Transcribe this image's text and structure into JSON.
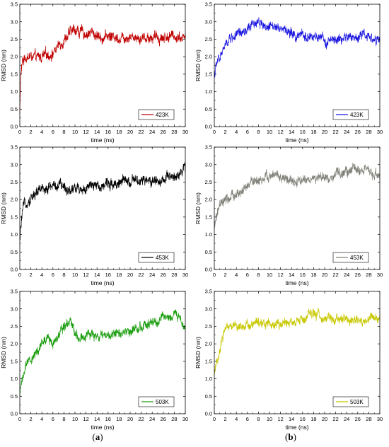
{
  "captions": [
    "a",
    "b"
  ],
  "chart_data": [
    {
      "type": "line",
      "xlabel": "time (ns)",
      "ylabel": "RMSD (nm)",
      "xlim": [
        0,
        30
      ],
      "ylim": [
        0,
        3.5
      ],
      "xticks": [
        "0",
        "2",
        "4",
        "6",
        "8",
        "10",
        "12",
        "14",
        "16",
        "18",
        "20",
        "22",
        "24",
        "26",
        "28",
        "30"
      ],
      "yticks": [
        "0.0",
        "0.5",
        "1.0",
        "1.5",
        "2.0",
        "2.5",
        "3.0",
        "3.5"
      ],
      "legend_placement": "bottom-right",
      "series": [
        {
          "name": "423K",
          "color": "#c00000",
          "noise": 0.13,
          "x": [
            0,
            0.2,
            0.5,
            1,
            2,
            3,
            4,
            5,
            6,
            7,
            8,
            9,
            10,
            11,
            12,
            13,
            14,
            15,
            16,
            18,
            20,
            22,
            24,
            26,
            28,
            30
          ],
          "y": [
            0.4,
            1.5,
            1.85,
            2.0,
            2.0,
            1.95,
            2.0,
            2.05,
            2.1,
            2.3,
            2.5,
            2.65,
            2.8,
            2.7,
            2.65,
            2.7,
            2.6,
            2.55,
            2.6,
            2.55,
            2.6,
            2.55,
            2.55,
            2.55,
            2.6,
            2.55
          ]
        }
      ]
    },
    {
      "type": "line",
      "xlabel": "time (ns)",
      "ylabel": "RMSD (nm)",
      "xlim": [
        0,
        30
      ],
      "ylim": [
        0,
        3.5
      ],
      "xticks": [
        "0",
        "2",
        "4",
        "6",
        "8",
        "10",
        "12",
        "14",
        "16",
        "18",
        "20",
        "22",
        "24",
        "26",
        "28",
        "30"
      ],
      "yticks": [
        "0.0",
        "0.5",
        "1.0",
        "1.5",
        "2.0",
        "2.5",
        "3.0",
        "3.5"
      ],
      "legend_placement": "bottom-right",
      "series": [
        {
          "name": "423K",
          "color": "#1a16e0",
          "noise": 0.12,
          "x": [
            0,
            0.5,
            1,
            2,
            3,
            4,
            5,
            6,
            7,
            8,
            9,
            10,
            11,
            12,
            13,
            14,
            15,
            16,
            18,
            20,
            22,
            24,
            26,
            27,
            28,
            29,
            30
          ],
          "y": [
            1.5,
            1.8,
            2.0,
            2.3,
            2.55,
            2.6,
            2.65,
            2.75,
            2.9,
            3.05,
            2.9,
            2.8,
            2.95,
            2.85,
            2.75,
            2.65,
            2.55,
            2.6,
            2.55,
            2.45,
            2.45,
            2.55,
            2.55,
            2.7,
            2.6,
            2.5,
            2.4
          ]
        }
      ]
    },
    {
      "type": "line",
      "xlabel": "time (ns)",
      "ylabel": "RMSD (nm)",
      "xlim": [
        0,
        30
      ],
      "ylim": [
        0,
        3.5
      ],
      "xticks": [
        "0",
        "2",
        "4",
        "6",
        "8",
        "10",
        "12",
        "14",
        "16",
        "18",
        "20",
        "22",
        "24",
        "26",
        "28",
        "30"
      ],
      "yticks": [
        "0.0",
        "0.5",
        "1.0",
        "1.5",
        "2.0",
        "2.5",
        "3.0",
        "3.5"
      ],
      "legend_placement": "bottom-right",
      "series": [
        {
          "name": "453K",
          "color": "#000000",
          "noise": 0.13,
          "x": [
            0,
            0.3,
            0.6,
            1,
            2,
            3,
            4,
            5,
            6,
            7,
            8,
            9,
            10,
            12,
            14,
            16,
            18,
            20,
            22,
            24,
            26,
            28,
            29,
            30
          ],
          "y": [
            0.75,
            1.4,
            1.7,
            1.9,
            2.05,
            2.2,
            2.3,
            2.35,
            2.4,
            2.4,
            2.35,
            2.3,
            2.35,
            2.3,
            2.4,
            2.45,
            2.5,
            2.5,
            2.5,
            2.55,
            2.55,
            2.65,
            2.8,
            2.9
          ]
        }
      ]
    },
    {
      "type": "line",
      "xlabel": "time (ns)",
      "ylabel": "RMSD (nm)",
      "xlim": [
        0,
        30
      ],
      "ylim": [
        0,
        3.5
      ],
      "xticks": [
        "0",
        "2",
        "4",
        "6",
        "8",
        "10",
        "12",
        "14",
        "16",
        "18",
        "20",
        "22",
        "24",
        "26",
        "28",
        "30"
      ],
      "yticks": [
        "0.0",
        "0.5",
        "1.0",
        "1.5",
        "2.0",
        "2.5",
        "3.0",
        "3.5"
      ],
      "legend_placement": "bottom-right",
      "series": [
        {
          "name": "453K",
          "color": "#808078",
          "noise": 0.12,
          "x": [
            0,
            0.3,
            1,
            2,
            3,
            4,
            5,
            6,
            7,
            8,
            9,
            10,
            11,
            12,
            13,
            14,
            15,
            16,
            18,
            20,
            22,
            24,
            25,
            26,
            27,
            28,
            29,
            30
          ],
          "y": [
            1.1,
            1.5,
            1.8,
            1.95,
            2.05,
            2.15,
            2.2,
            2.35,
            2.55,
            2.55,
            2.6,
            2.65,
            2.7,
            2.6,
            2.6,
            2.5,
            2.45,
            2.55,
            2.6,
            2.6,
            2.7,
            2.8,
            2.85,
            2.9,
            2.85,
            2.75,
            2.7,
            2.75
          ]
        }
      ]
    },
    {
      "type": "line",
      "xlabel": "time (ns)",
      "ylabel": "RMSD (nm)",
      "xlim": [
        0,
        30
      ],
      "ylim": [
        0,
        3.5
      ],
      "xticks": [
        "0",
        "2",
        "4",
        "6",
        "8",
        "10",
        "12",
        "14",
        "16",
        "18",
        "20",
        "22",
        "24",
        "26",
        "28",
        "30"
      ],
      "yticks": [
        "0.0",
        "0.5",
        "1.0",
        "1.5",
        "2.0",
        "2.5",
        "3.0",
        "3.5"
      ],
      "legend_placement": "bottom-right",
      "series": [
        {
          "name": "503K",
          "color": "#1c9e10",
          "noise": 0.12,
          "x": [
            0,
            0.3,
            1,
            2,
            3,
            4,
            5,
            6,
            7,
            8,
            9,
            10,
            11,
            12,
            14,
            16,
            18,
            20,
            22,
            24,
            25,
            26,
            27,
            28,
            29,
            30
          ],
          "y": [
            0.5,
            0.95,
            1.3,
            1.55,
            1.75,
            2.0,
            2.15,
            2.05,
            2.3,
            2.55,
            2.7,
            2.35,
            2.2,
            2.25,
            2.2,
            2.25,
            2.3,
            2.4,
            2.5,
            2.55,
            2.6,
            2.75,
            2.8,
            2.85,
            2.7,
            2.55
          ]
        }
      ]
    },
    {
      "type": "line",
      "xlabel": "time (ns)",
      "ylabel": "RMSD (nm)",
      "xlim": [
        0,
        30
      ],
      "ylim": [
        0,
        3.5
      ],
      "xticks": [
        "0",
        "2",
        "4",
        "6",
        "8",
        "10",
        "12",
        "14",
        "16",
        "18",
        "20",
        "22",
        "24",
        "26",
        "28",
        "30"
      ],
      "yticks": [
        "0.0",
        "0.5",
        "1.0",
        "1.5",
        "2.0",
        "2.5",
        "3.0",
        "3.5"
      ],
      "legend_placement": "bottom-right",
      "series": [
        {
          "name": "503K",
          "color": "#c8c800",
          "noise": 0.11,
          "x": [
            0,
            0.5,
            1,
            1.5,
            2,
            3,
            4,
            6,
            8,
            10,
            12,
            14,
            16,
            18,
            20,
            22,
            24,
            26,
            28,
            30
          ],
          "y": [
            1.1,
            1.5,
            1.8,
            2.2,
            2.5,
            2.55,
            2.5,
            2.55,
            2.6,
            2.6,
            2.55,
            2.6,
            2.65,
            2.85,
            2.75,
            2.7,
            2.7,
            2.65,
            2.7,
            2.8
          ]
        }
      ]
    }
  ]
}
